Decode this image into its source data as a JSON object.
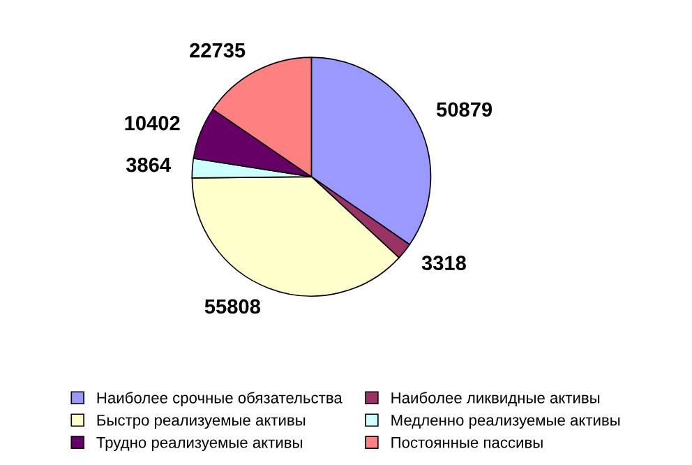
{
  "chart_data": {
    "type": "pie",
    "categories": [
      "Наиболее срочные обязательства",
      "Наиболее ликвидные активы",
      "Быстро реализуемые активы",
      "Медленно реализуемые активы",
      "Трудно реализуемые активы",
      "Постоянные пассивы"
    ],
    "values": [
      50879,
      3318,
      55808,
      3864,
      10402,
      22735
    ],
    "colors": [
      "#9999ff",
      "#993366",
      "#ffffcc",
      "#ccffff",
      "#660066",
      "#ff8080"
    ],
    "data_labels": true,
    "legend": "bottom"
  }
}
